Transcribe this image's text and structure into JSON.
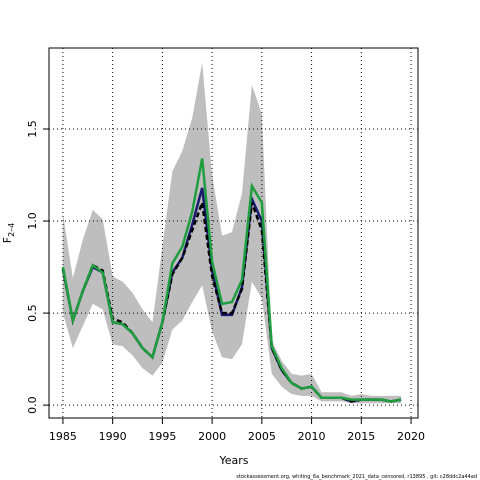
{
  "chart_data": {
    "type": "line",
    "xlabel": "Years",
    "ylabel": "F",
    "ylabel_sub": "2–4",
    "footnote": "stockassessment.org,  whiting_6a_benchmark_2021_data_censored,  r13895 ,  git: c28ddc2a44ad",
    "x": [
      1985,
      1986,
      1987,
      1988,
      1989,
      1990,
      1991,
      1992,
      1993,
      1994,
      1995,
      1996,
      1997,
      1998,
      1999,
      2000,
      2001,
      2002,
      2003,
      2004,
      2005,
      2006,
      2007,
      2008,
      2009,
      2010,
      2011,
      2012,
      2013,
      2014,
      2015,
      2016,
      2017,
      2018,
      2019
    ],
    "band": {
      "color": "#bebebe",
      "upper": [
        1.04,
        0.69,
        0.9,
        1.06,
        1.01,
        0.7,
        0.67,
        0.61,
        0.52,
        0.45,
        0.86,
        1.27,
        1.38,
        1.56,
        1.86,
        1.25,
        0.92,
        0.94,
        1.15,
        1.74,
        1.58,
        0.35,
        0.24,
        0.17,
        0.16,
        0.17,
        0.07,
        0.07,
        0.07,
        0.05,
        0.06,
        0.05,
        0.05,
        0.05,
        0.05
      ],
      "lower": [
        0.5,
        0.31,
        0.43,
        0.55,
        0.52,
        0.33,
        0.32,
        0.27,
        0.2,
        0.16,
        0.23,
        0.41,
        0.46,
        0.56,
        0.65,
        0.4,
        0.26,
        0.25,
        0.33,
        0.67,
        0.58,
        0.17,
        0.1,
        0.06,
        0.05,
        0.05,
        0.02,
        0.02,
        0.02,
        0.01,
        0.01,
        0.01,
        0.01,
        0.01,
        0.01
      ]
    },
    "series": [
      {
        "color": "#191970",
        "values": [
          0.74,
          0.46,
          0.62,
          0.75,
          0.72,
          0.45,
          0.44,
          0.39,
          0.31,
          0.26,
          0.45,
          0.72,
          0.8,
          0.98,
          1.18,
          0.73,
          0.49,
          0.49,
          0.64,
          1.12,
          1.0,
          0.31,
          0.19,
          0.12,
          0.09,
          0.1,
          0.04,
          0.04,
          0.04,
          0.02,
          0.03,
          0.03,
          0.03,
          0.02,
          0.03
        ]
      },
      {
        "color": "#000000",
        "dashed": true,
        "values": [
          0.74,
          0.46,
          0.62,
          0.76,
          0.73,
          0.47,
          0.45,
          0.39,
          0.31,
          0.26,
          0.45,
          0.71,
          0.8,
          0.95,
          1.1,
          0.7,
          0.5,
          0.5,
          0.63,
          1.1,
          0.95,
          0.31,
          0.19,
          0.12,
          0.09,
          0.1,
          0.04,
          0.04,
          0.04,
          0.02,
          0.03,
          0.03,
          0.03,
          0.02,
          0.03
        ]
      },
      {
        "color": "#1e9e3e",
        "values": [
          0.75,
          0.46,
          0.62,
          0.76,
          0.72,
          0.45,
          0.44,
          0.39,
          0.31,
          0.26,
          0.45,
          0.77,
          0.86,
          1.05,
          1.34,
          0.78,
          0.55,
          0.56,
          0.68,
          1.19,
          1.1,
          0.32,
          0.2,
          0.12,
          0.09,
          0.1,
          0.04,
          0.04,
          0.04,
          0.03,
          0.03,
          0.03,
          0.03,
          0.02,
          0.03
        ]
      }
    ],
    "xlim": [
      1983.6,
      2020.7
    ],
    "ylim": [
      -0.07,
      1.94
    ],
    "xticks": [
      1985,
      1990,
      1995,
      2000,
      2005,
      2010,
      2015,
      2020
    ],
    "yticks": [
      {
        "value": 0,
        "label": "0.0"
      },
      0.5,
      {
        "value": 1,
        "label": "1.0"
      },
      1.5
    ],
    "grid": true
  }
}
